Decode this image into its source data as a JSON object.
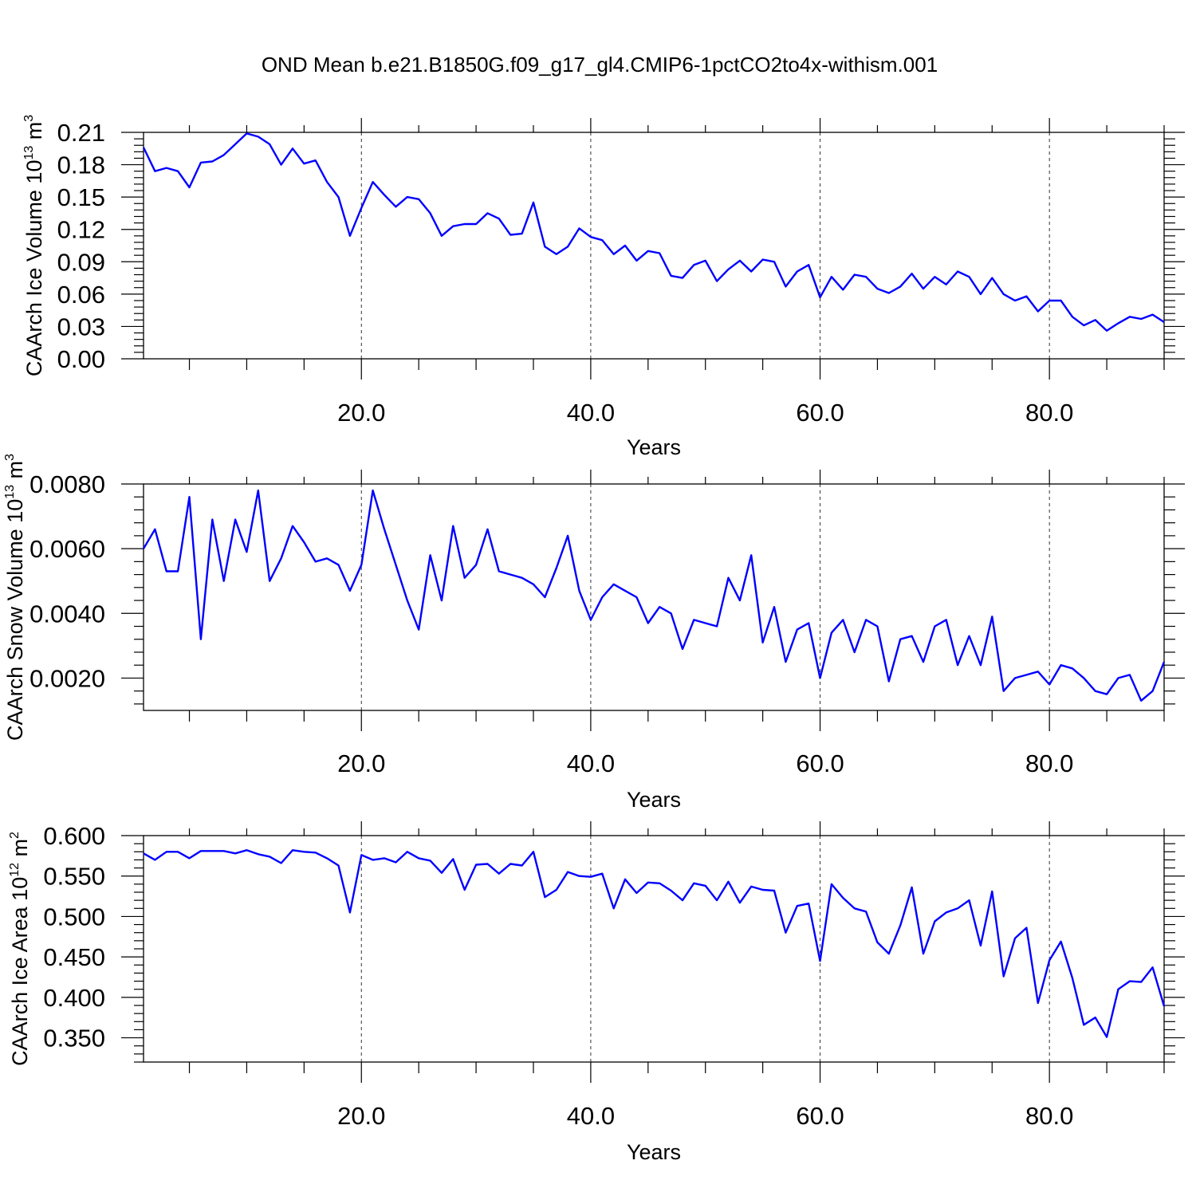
{
  "title": "OND Mean b.e21.B1850G.f09_g17_gl4.CMIP6-1pctCO2to4x-withism.001",
  "chart_data": [
    {
      "type": "line",
      "xlabel": "Years",
      "ylabel": "CAArch Ice Volume 10",
      "ylabel_exp": "13",
      "ylabel_unit": " m",
      "ylabel_unit_exp": "3",
      "xlim": [
        1,
        90
      ],
      "ylim": [
        0,
        0.21
      ],
      "xticks": [
        20,
        40,
        60,
        80
      ],
      "xtick_labels": [
        "20.0",
        "40.0",
        "60.0",
        "80.0"
      ],
      "yticks": [
        0.0,
        0.03,
        0.06,
        0.09,
        0.12,
        0.15,
        0.18,
        0.21
      ],
      "ytick_labels": [
        "0.00",
        "0.03",
        "0.06",
        "0.09",
        "0.12",
        "0.15",
        "0.18",
        "0.21"
      ],
      "grid": "vertical dashed at x ticks",
      "series": [
        {
          "color": "#0000ff",
          "x": [
            1,
            2,
            3,
            4,
            5,
            6,
            7,
            8,
            9,
            10,
            11,
            12,
            13,
            14,
            15,
            16,
            17,
            18,
            19,
            20,
            21,
            22,
            23,
            24,
            25,
            26,
            27,
            28,
            29,
            30,
            31,
            32,
            33,
            34,
            35,
            36,
            37,
            38,
            39,
            40,
            41,
            42,
            43,
            44,
            45,
            46,
            47,
            48,
            49,
            50,
            51,
            52,
            53,
            54,
            55,
            56,
            57,
            58,
            59,
            60,
            61,
            62,
            63,
            64,
            65,
            66,
            67,
            68,
            69,
            70,
            71,
            72,
            73,
            74,
            75,
            76,
            77,
            78,
            79,
            80,
            81,
            82,
            83,
            84,
            85,
            86,
            87,
            88,
            89,
            90
          ],
          "values": [
            0.196,
            0.174,
            0.177,
            0.174,
            0.159,
            0.182,
            0.183,
            0.189,
            0.199,
            0.209,
            0.206,
            0.199,
            0.18,
            0.195,
            0.181,
            0.184,
            0.164,
            0.15,
            0.114,
            0.14,
            0.164,
            0.152,
            0.141,
            0.15,
            0.148,
            0.135,
            0.114,
            0.123,
            0.125,
            0.125,
            0.135,
            0.13,
            0.115,
            0.116,
            0.145,
            0.104,
            0.097,
            0.104,
            0.121,
            0.113,
            0.11,
            0.097,
            0.105,
            0.091,
            0.1,
            0.098,
            0.077,
            0.075,
            0.087,
            0.091,
            0.072,
            0.083,
            0.091,
            0.081,
            0.092,
            0.09,
            0.067,
            0.081,
            0.087,
            0.057,
            0.076,
            0.064,
            0.078,
            0.076,
            0.065,
            0.061,
            0.067,
            0.079,
            0.065,
            0.076,
            0.069,
            0.081,
            0.076,
            0.06,
            0.075,
            0.06,
            0.054,
            0.058,
            0.044,
            0.054,
            0.054,
            0.039,
            0.031,
            0.036,
            0.026,
            0.033,
            0.039,
            0.037,
            0.041,
            0.034
          ]
        }
      ]
    },
    {
      "type": "line",
      "xlabel": "Years",
      "ylabel": "CAArch Snow Volume 10",
      "ylabel_exp": "13",
      "ylabel_unit": " m",
      "ylabel_unit_exp": "3",
      "xlim": [
        1,
        90
      ],
      "ylim": [
        0.001,
        0.008
      ],
      "xticks": [
        20,
        40,
        60,
        80
      ],
      "xtick_labels": [
        "20.0",
        "40.0",
        "60.0",
        "80.0"
      ],
      "yticks": [
        0.002,
        0.004,
        0.006,
        0.008
      ],
      "ytick_labels": [
        "0.0020",
        "0.0040",
        "0.0060",
        "0.0080"
      ],
      "grid": "vertical dashed at x ticks",
      "series": [
        {
          "color": "#0000ff",
          "x": [
            1,
            2,
            3,
            4,
            5,
            6,
            7,
            8,
            9,
            10,
            11,
            12,
            13,
            14,
            15,
            16,
            17,
            18,
            19,
            20,
            21,
            22,
            23,
            24,
            25,
            26,
            27,
            28,
            29,
            30,
            31,
            32,
            33,
            34,
            35,
            36,
            37,
            38,
            39,
            40,
            41,
            42,
            43,
            44,
            45,
            46,
            47,
            48,
            49,
            50,
            51,
            52,
            53,
            54,
            55,
            56,
            57,
            58,
            59,
            60,
            61,
            62,
            63,
            64,
            65,
            66,
            67,
            68,
            69,
            70,
            71,
            72,
            73,
            74,
            75,
            76,
            77,
            78,
            79,
            80,
            81,
            82,
            83,
            84,
            85,
            86,
            87,
            88,
            89,
            90
          ],
          "values": [
            0.006,
            0.0066,
            0.0053,
            0.0053,
            0.0076,
            0.0032,
            0.0069,
            0.005,
            0.0069,
            0.0059,
            0.0078,
            0.005,
            0.0057,
            0.0067,
            0.0062,
            0.0056,
            0.0057,
            0.0055,
            0.0047,
            0.0055,
            0.0078,
            0.0066,
            0.0055,
            0.0044,
            0.0035,
            0.0058,
            0.0044,
            0.0067,
            0.0051,
            0.0055,
            0.0066,
            0.0053,
            0.0052,
            0.0051,
            0.0049,
            0.0045,
            0.0054,
            0.0064,
            0.0047,
            0.0038,
            0.0045,
            0.0049,
            0.0047,
            0.0045,
            0.0037,
            0.0042,
            0.004,
            0.0029,
            0.0038,
            0.0037,
            0.0036,
            0.0051,
            0.0044,
            0.0058,
            0.0031,
            0.0042,
            0.0025,
            0.0035,
            0.0037,
            0.002,
            0.0034,
            0.0038,
            0.0028,
            0.0038,
            0.0036,
            0.0019,
            0.0032,
            0.0033,
            0.0025,
            0.0036,
            0.0038,
            0.0024,
            0.0033,
            0.0024,
            0.0039,
            0.0016,
            0.002,
            0.0021,
            0.0022,
            0.0018,
            0.0024,
            0.0023,
            0.002,
            0.0016,
            0.0015,
            0.002,
            0.0021,
            0.0013,
            0.0016,
            0.0025
          ]
        }
      ]
    },
    {
      "type": "line",
      "xlabel": "Years",
      "ylabel": "CAArch Ice Area 10",
      "ylabel_exp": "12",
      "ylabel_unit": " m",
      "ylabel_unit_exp": "2",
      "xlim": [
        1,
        90
      ],
      "ylim": [
        0.32,
        0.6
      ],
      "xticks": [
        20,
        40,
        60,
        80
      ],
      "xtick_labels": [
        "20.0",
        "40.0",
        "60.0",
        "80.0"
      ],
      "yticks": [
        0.35,
        0.4,
        0.45,
        0.5,
        0.55,
        0.6
      ],
      "ytick_labels": [
        "0.350",
        "0.400",
        "0.450",
        "0.500",
        "0.550",
        "0.600"
      ],
      "grid": "vertical dashed at x ticks",
      "series": [
        {
          "color": "#0000ff",
          "x": [
            1,
            2,
            3,
            4,
            5,
            6,
            7,
            8,
            9,
            10,
            11,
            12,
            13,
            14,
            15,
            16,
            17,
            18,
            19,
            20,
            21,
            22,
            23,
            24,
            25,
            26,
            27,
            28,
            29,
            30,
            31,
            32,
            33,
            34,
            35,
            36,
            37,
            38,
            39,
            40,
            41,
            42,
            43,
            44,
            45,
            46,
            47,
            48,
            49,
            50,
            51,
            52,
            53,
            54,
            55,
            56,
            57,
            58,
            59,
            60,
            61,
            62,
            63,
            64,
            65,
            66,
            67,
            68,
            69,
            70,
            71,
            72,
            73,
            74,
            75,
            76,
            77,
            78,
            79,
            80,
            81,
            82,
            83,
            84,
            85,
            86,
            87,
            88,
            89,
            90
          ],
          "values": [
            0.578,
            0.57,
            0.58,
            0.58,
            0.572,
            0.581,
            0.581,
            0.581,
            0.578,
            0.582,
            0.577,
            0.574,
            0.566,
            0.582,
            0.58,
            0.579,
            0.572,
            0.563,
            0.505,
            0.576,
            0.57,
            0.572,
            0.567,
            0.58,
            0.572,
            0.569,
            0.554,
            0.571,
            0.533,
            0.564,
            0.565,
            0.553,
            0.565,
            0.563,
            0.58,
            0.524,
            0.533,
            0.555,
            0.55,
            0.549,
            0.553,
            0.51,
            0.546,
            0.529,
            0.542,
            0.541,
            0.532,
            0.52,
            0.541,
            0.538,
            0.52,
            0.543,
            0.517,
            0.537,
            0.533,
            0.532,
            0.48,
            0.513,
            0.516,
            0.445,
            0.54,
            0.523,
            0.51,
            0.506,
            0.468,
            0.454,
            0.489,
            0.536,
            0.454,
            0.494,
            0.505,
            0.51,
            0.52,
            0.464,
            0.531,
            0.426,
            0.473,
            0.486,
            0.393,
            0.446,
            0.469,
            0.424,
            0.366,
            0.375,
            0.351,
            0.41,
            0.42,
            0.419,
            0.437,
            0.389
          ]
        }
      ]
    }
  ]
}
